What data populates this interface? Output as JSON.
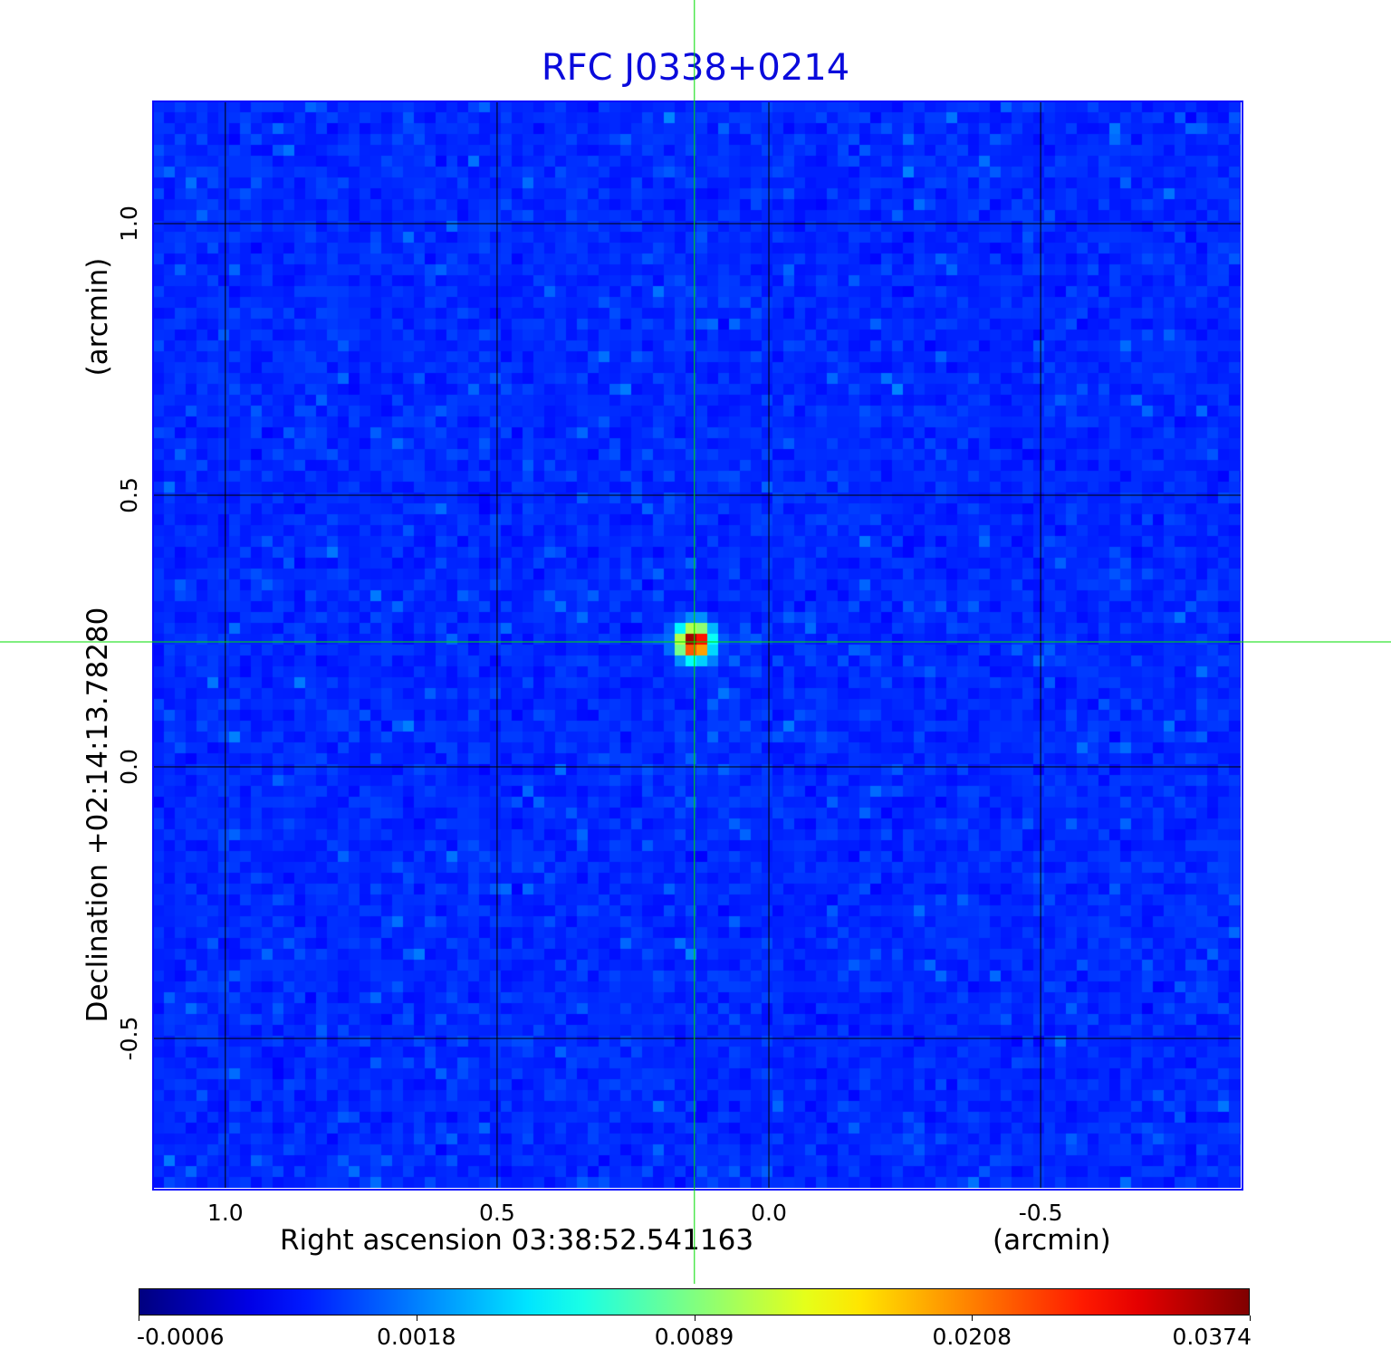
{
  "chart_data": {
    "type": "heatmap",
    "title": "RFC J0338+0214",
    "xlabel": "Right ascension  03:38:52.541163",
    "xunit": "(arcmin)",
    "ylabel": "Declination  +02:14:13.78280",
    "yunit": "(arcmin)",
    "xlim": [
      1.133,
      -0.868
    ],
    "ylim": [
      -0.775,
      1.225
    ],
    "xticks": [
      "1.0",
      "0.5",
      "0.0",
      "-0.5"
    ],
    "xtick_values": [
      1.0,
      0.5,
      0.0,
      -0.5
    ],
    "yticks": [
      "1.0",
      "0.5",
      "0.0",
      "-0.5"
    ],
    "ytick_values": [
      1.0,
      0.5,
      0.0,
      -0.5
    ],
    "grid": true,
    "colormap": "jet",
    "colorbar": {
      "ticks": [
        "-0.0006",
        "0.0018",
        "0.0089",
        "0.0208",
        "0.0374"
      ],
      "min": -0.0006,
      "max": 0.0374
    },
    "source_peak": {
      "x": 0.137,
      "y": 0.23,
      "value": 0.0374
    },
    "crosshair": {
      "x": 0.137,
      "y": 0.23,
      "color": "#00dd00"
    },
    "frame_color": "#0a0aff",
    "title_color": "#0a0adc"
  }
}
